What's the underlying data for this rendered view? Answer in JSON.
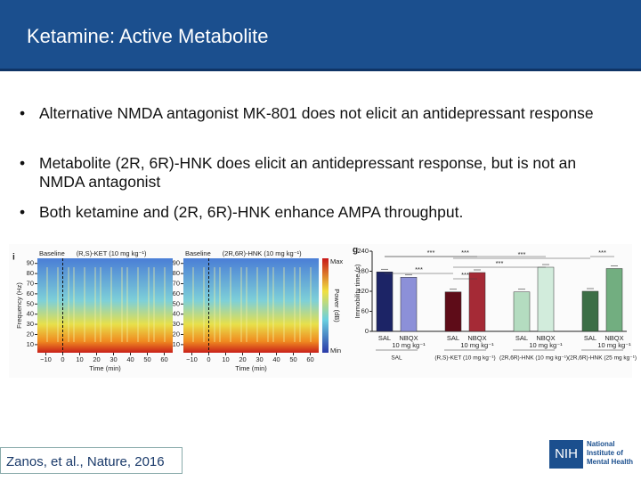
{
  "header": {
    "title": "Ketamine: Active Metabolite"
  },
  "bullets": [
    "Alternative NMDA antagonist MK-801 does not elicit an antidepressant response",
    "Metabolite (2R, 6R)-HNK does elicit an antidepressant response, but is not an NMDA antagonist",
    "Both ketamine and (2R, 6R)-HNK enhance AMPA throughput."
  ],
  "figure": {
    "panel_i": {
      "label": "i",
      "panels": [
        {
          "baseline": "Baseline",
          "condition": "(R,S)-KET (10 mg kg⁻¹)"
        },
        {
          "baseline": "Baseline",
          "condition": "(2R,6R)-HNK (10 mg kg⁻¹)"
        }
      ],
      "y_label": "Frequency (Hz)",
      "ylim": [
        2,
        95
      ],
      "yticks": [
        10,
        20,
        30,
        40,
        50,
        60,
        70,
        80,
        90
      ],
      "x_label": "Time (min)",
      "xlim": [
        -15,
        65
      ],
      "xticks": [
        {
          "value": -10,
          "label": "−10"
        },
        0,
        10,
        20,
        30,
        40,
        50,
        60
      ],
      "colorbar": {
        "label": "Power (dB)",
        "max": "Max",
        "min": "Min"
      }
    },
    "panel_g": {
      "type": "bar",
      "label": "g",
      "y_label": "Immobility time (s)",
      "ylim": [
        0,
        240
      ],
      "yticks": [
        0,
        60,
        120,
        180,
        240
      ],
      "categories": [
        "SAL",
        "NBQX",
        "SAL",
        "NBQX",
        "SAL",
        "NBQX",
        "SAL",
        "NBQX"
      ],
      "values": [
        178,
        162,
        118,
        176,
        118,
        192,
        120,
        188
      ],
      "colors": [
        "#1c2466",
        "#8c90d8",
        "#5e0c18",
        "#a52a36",
        "#b4dcc0",
        "#d2ecdc",
        "#3c6e46",
        "#72ae80"
      ],
      "dose_labels": [
        "10 mg kg⁻¹",
        "10 mg kg⁻¹",
        "10 mg kg⁻¹",
        "10 mg kg⁻¹"
      ],
      "groups": [
        "SAL",
        "(R,S)-KET (10 mg kg⁻¹)",
        "(2R,6R)-HNK (10 mg kg⁻¹)",
        "(2R,6R)-HNK (25 mg kg⁻¹)"
      ],
      "significance": [
        "***",
        "***",
        "***",
        "***",
        "***",
        "***",
        "***"
      ]
    }
  },
  "citation": "Zanos, et al., Nature, 2016",
  "logo": {
    "mark": "NIH",
    "name": "National Institute of Mental Health"
  }
}
